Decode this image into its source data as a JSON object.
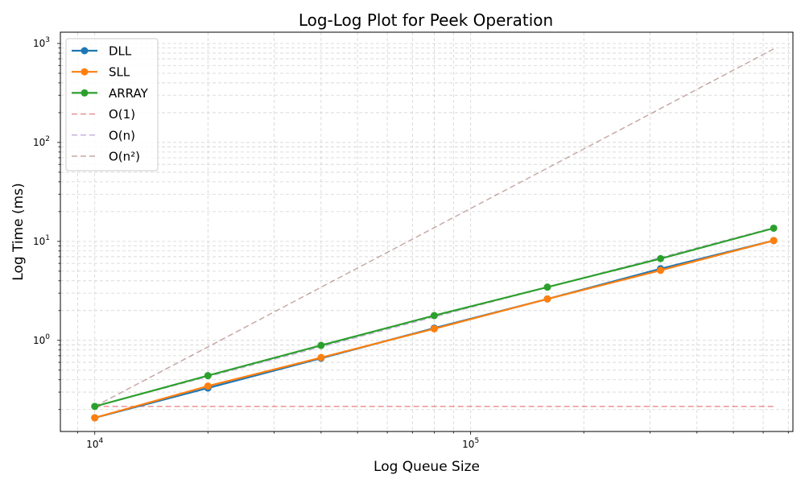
{
  "chart_data": {
    "type": "line",
    "title": "Log-Log Plot for Peek Operation",
    "xlabel": "Log Queue Size",
    "ylabel": "Log Time (ms)",
    "xscale": "log",
    "yscale": "log",
    "xlim": [
      8100,
      720000
    ],
    "ylim": [
      0.12,
      1300
    ],
    "grid": true,
    "legend_position": "top-left",
    "x": [
      10000,
      20000,
      40000,
      80000,
      160000,
      320000,
      640000
    ],
    "series": [
      {
        "name": "DLL",
        "values": [
          0.165,
          0.33,
          0.66,
          1.33,
          2.62,
          5.3,
          10.2
        ],
        "color": "#1f77b4",
        "style": "solid",
        "marker": "circle"
      },
      {
        "name": "SLL",
        "values": [
          0.165,
          0.345,
          0.67,
          1.31,
          2.62,
          5.1,
          10.2
        ],
        "color": "#ff7f0e",
        "style": "solid",
        "marker": "circle"
      },
      {
        "name": "ARRAY",
        "values": [
          0.215,
          0.44,
          0.89,
          1.78,
          3.45,
          6.7,
          13.6
        ],
        "color": "#2ca02c",
        "style": "solid",
        "marker": "circle"
      },
      {
        "name": "O(1)",
        "values": [
          0.215,
          0.215,
          0.215,
          0.215,
          0.215,
          0.215,
          0.215
        ],
        "color": "#d62728",
        "style": "dashed",
        "marker": "none"
      },
      {
        "name": "O(n)",
        "values": [
          0.215,
          0.43,
          0.86,
          1.72,
          3.44,
          6.88,
          13.76
        ],
        "color": "#9467bd",
        "style": "dashed",
        "marker": "none"
      },
      {
        "name": "O(n²)",
        "values": [
          0.215,
          0.86,
          3.44,
          13.76,
          55.04,
          220.16,
          880.64
        ],
        "color": "#8c564b",
        "style": "dashed",
        "marker": "none"
      }
    ],
    "x_tick_labels": [
      {
        "value": 10000,
        "base": "10",
        "exp": "4"
      },
      {
        "value": 100000,
        "base": "10",
        "exp": "5"
      }
    ],
    "y_tick_labels": [
      {
        "value": 1,
        "base": "10",
        "exp": "0"
      },
      {
        "value": 10,
        "base": "10",
        "exp": "1"
      },
      {
        "value": 100,
        "base": "10",
        "exp": "2"
      },
      {
        "value": 1000,
        "base": "10",
        "exp": "3"
      }
    ]
  }
}
